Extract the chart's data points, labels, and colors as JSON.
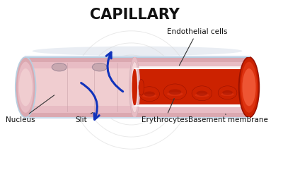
{
  "title": "CAPILLARY",
  "title_fontsize": 15,
  "title_fontweight": "bold",
  "background_color": "#ffffff",
  "labels": {
    "nucleus": "Nucleus",
    "slit": "Slit",
    "erythrocytes": "Erythrocytes",
    "basement_membrane": "Basement membrane",
    "endothelial_cells": "Endothelial cells"
  },
  "label_fontsize": 7.5,
  "colors": {
    "outer_rim": "#b8cfe0",
    "outer_rim2": "#ccdcec",
    "wall_pink": "#dba8b0",
    "wall_light": "#e8bcc4",
    "lumen_pink": "#f0cdd0",
    "lumen_lighter": "#f5d8db",
    "rbc_bright": "#dd3311",
    "rbc_mid": "#cc2200",
    "rbc_dark": "#991100",
    "rbc_highlight": "#ee5533",
    "nucleus_fill": "#c8a8b0",
    "nucleus_edge": "#a08898",
    "cut_white": "#ffffff",
    "arrow_blue": "#1133bb",
    "watermark_ring": "#d8d8d8",
    "label_line": "#333333",
    "shadow": "#c0c8d0"
  }
}
